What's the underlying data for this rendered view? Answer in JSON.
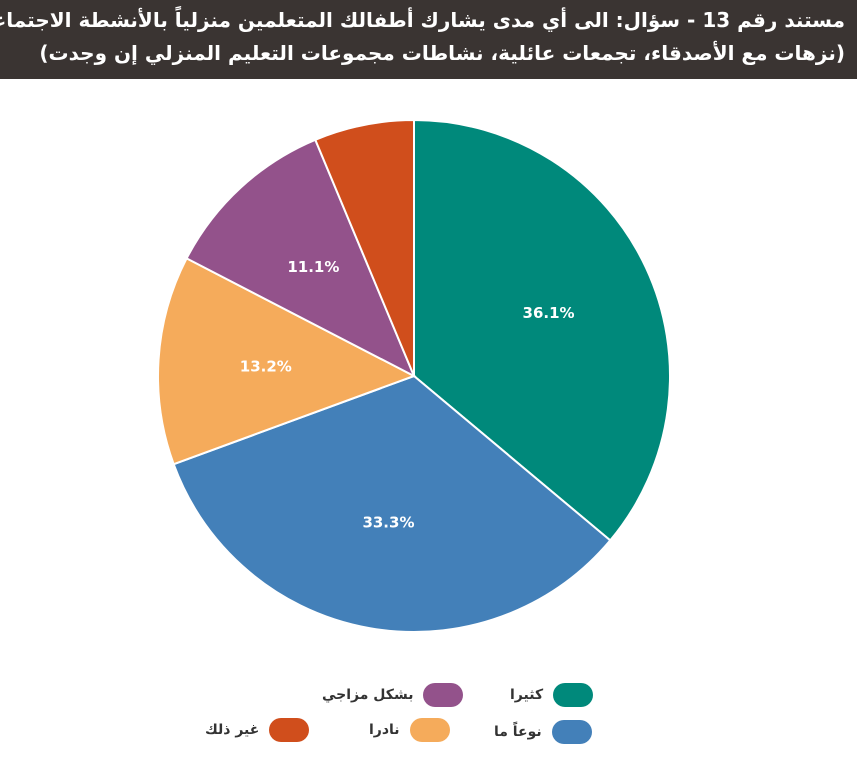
{
  "header": {
    "line1": "مستند رقم 13 - سؤال: الى أي مدى يشارك أطفالك المتعلمين منزلياً بالأنشطة الاجتماعية؟",
    "line2": "(نزهات مع الأصدقاء، تجمعات عائلية، نشاطات مجموعات التعليم المنزلي إن وجدت)",
    "background_color": "#3a3432"
  },
  "chart_data": {
    "type": "pie",
    "title": "مستند رقم 13 - سؤال: الى أي مدى يشارك أطفالك المتعلمين منزلياً بالأنشطة الاجتماعية؟ (نزهات مع الأصدقاء، تجمعات عائلية، نشاطات مجموعات التعليم المنزلي إن وجدت)",
    "slices": [
      {
        "label": "كثيرا",
        "value": 36.1,
        "display": "36.1%",
        "color": "#00897b"
      },
      {
        "label": "نوعاً ما",
        "value": 33.3,
        "display": "33.3%",
        "color": "#4380b9"
      },
      {
        "label": "نادرا",
        "value": 13.2,
        "display": "13.2%",
        "color": "#f5ab5b"
      },
      {
        "label": "بشكل مزاجي",
        "value": 11.1,
        "display": "11.1%",
        "color": "#93528b"
      },
      {
        "label": "غير ذلك",
        "value": 6.3,
        "display": "",
        "color": "#d04e1c"
      }
    ],
    "start_angle": "12 o'clock",
    "direction": "clockwise",
    "legend_position": "bottom"
  }
}
